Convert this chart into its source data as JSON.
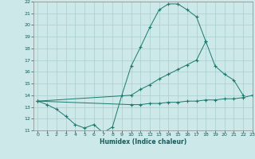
{
  "xlabel": "Humidex (Indice chaleur)",
  "x": [
    0,
    1,
    2,
    3,
    4,
    5,
    6,
    7,
    8,
    9,
    10,
    11,
    12,
    13,
    14,
    15,
    16,
    17,
    18,
    19,
    20,
    21,
    22,
    23
  ],
  "line1_y": [
    13.5,
    13.2,
    12.8,
    12.2,
    11.5,
    11.2,
    11.5,
    10.8,
    11.3,
    14.0,
    16.5,
    18.1,
    19.8,
    21.3,
    21.8,
    21.8,
    21.3,
    20.7,
    18.6,
    null,
    null,
    null,
    null,
    null
  ],
  "line2_y": [
    13.5,
    null,
    null,
    null,
    null,
    null,
    null,
    null,
    null,
    null,
    14.0,
    14.5,
    14.9,
    15.4,
    15.8,
    16.2,
    16.6,
    17.0,
    18.6,
    16.5,
    15.8,
    15.3,
    14.0,
    null
  ],
  "line3_y": [
    13.5,
    null,
    null,
    null,
    null,
    null,
    null,
    null,
    null,
    null,
    13.2,
    13.2,
    13.3,
    13.3,
    13.4,
    13.4,
    13.5,
    13.5,
    13.6,
    13.6,
    13.7,
    13.7,
    13.8,
    14.0
  ],
  "ylim": [
    11,
    22
  ],
  "xlim": [
    -0.5,
    23
  ],
  "yticks": [
    11,
    12,
    13,
    14,
    15,
    16,
    17,
    18,
    19,
    20,
    21,
    22
  ],
  "xticks": [
    0,
    1,
    2,
    3,
    4,
    5,
    6,
    7,
    8,
    9,
    10,
    11,
    12,
    13,
    14,
    15,
    16,
    17,
    18,
    19,
    20,
    21,
    22,
    23
  ],
  "line_color": "#1a7a6e",
  "bg_color": "#cce8e8",
  "grid_color": "#aacece"
}
